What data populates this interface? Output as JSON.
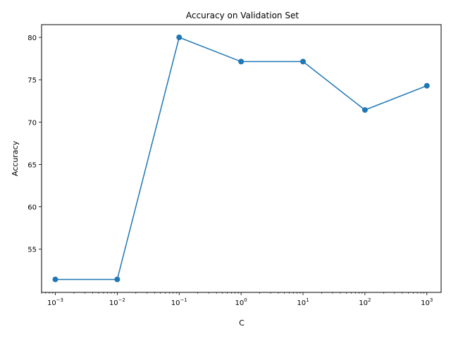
{
  "chart_data": {
    "type": "line",
    "title": "Accuracy on Validation Set",
    "xlabel": "C",
    "ylabel": "Accuracy",
    "xscale": "log",
    "x": [
      0.001,
      0.01,
      0.1,
      1,
      10,
      100,
      1000
    ],
    "x_tick_labels": [
      {
        "base": "10",
        "exp": "−3"
      },
      {
        "base": "10",
        "exp": "−2"
      },
      {
        "base": "10",
        "exp": "−1"
      },
      {
        "base": "10",
        "exp": "0"
      },
      {
        "base": "10",
        "exp": "1"
      },
      {
        "base": "10",
        "exp": "2"
      },
      {
        "base": "10",
        "exp": "3"
      }
    ],
    "y_ticks": [
      55,
      60,
      65,
      70,
      75,
      80
    ],
    "y_tick_labels": [
      "55",
      "60",
      "65",
      "70",
      "75",
      "80"
    ],
    "xlim": [
      0.0006,
      1700
    ],
    "ylim": [
      49.9,
      81.5
    ],
    "series": [
      {
        "values": [
          51.43,
          51.43,
          80.0,
          77.14,
          77.14,
          71.43,
          74.29
        ],
        "color": "#1f77b4",
        "marker": "circle"
      }
    ],
    "grid": false,
    "legend": "none"
  }
}
